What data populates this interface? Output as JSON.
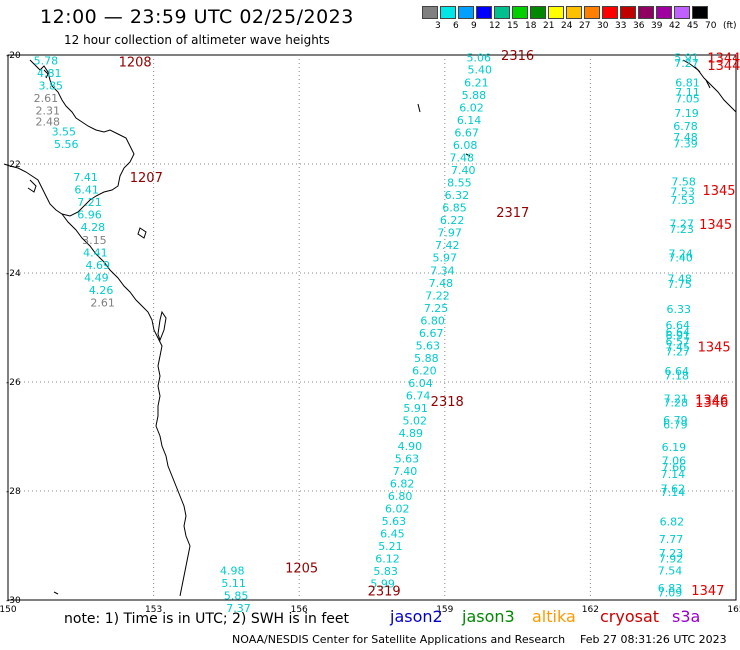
{
  "header": {
    "title": "12:00 — 23:59 UTC 02/25/2023",
    "subtitle": "12 hour collection of altimeter wave heights"
  },
  "colorbar": {
    "labels": [
      "3",
      "6",
      "9",
      "12",
      "15",
      "18",
      "21",
      "24",
      "27",
      "30",
      "33",
      "36",
      "39",
      "42",
      "45",
      "70",
      "(ft)"
    ],
    "colors": [
      "#808080",
      "#00e5e5",
      "#00a0ff",
      "#0000ff",
      "#00c090",
      "#00d000",
      "#008800",
      "#ffff00",
      "#ffc000",
      "#ff8000",
      "#ff0000",
      "#c00000",
      "#900060",
      "#a000a0",
      "#c060ff",
      "#000000"
    ]
  },
  "axes": {
    "lat_labels": [
      {
        "lat": -20,
        "text": "-20"
      },
      {
        "lat": -22,
        "text": "-22"
      },
      {
        "lat": -24,
        "text": "-24"
      },
      {
        "lat": -26,
        "text": "-26"
      },
      {
        "lat": -28,
        "text": "-28"
      },
      {
        "lat": -30,
        "text": "-30"
      }
    ],
    "lon_labels": [
      {
        "lon": 150,
        "text": "150"
      },
      {
        "lon": 153,
        "text": "153"
      },
      {
        "lon": 156,
        "text": "156"
      },
      {
        "lon": 159,
        "text": "159"
      },
      {
        "lon": 162,
        "text": "162"
      },
      {
        "lon": 165,
        "text": "165"
      }
    ]
  },
  "passes": [
    {
      "color": "#00cccc",
      "points": [
        {
          "lon": 150.78,
          "lat": -20.1,
          "v": "5.78"
        },
        {
          "lon": 150.85,
          "lat": -20.33,
          "v": "4.81"
        },
        {
          "lon": 150.88,
          "lat": -20.56,
          "v": "3.85"
        },
        {
          "lon": 150.78,
          "lat": -20.79,
          "v": "2.61",
          "c": "#808080"
        },
        {
          "lon": 150.82,
          "lat": -21.02,
          "v": "2.31",
          "c": "#808080"
        },
        {
          "lon": 150.82,
          "lat": -21.22,
          "v": "2.48",
          "c": "#808080"
        },
        {
          "lon": 151.15,
          "lat": -21.4,
          "v": "3.55"
        },
        {
          "lon": 151.2,
          "lat": -21.63,
          "v": "5.56"
        },
        {
          "lon": 151.6,
          "lat": -22.24,
          "v": "7.41"
        },
        {
          "lon": 151.62,
          "lat": -22.47,
          "v": "6.41"
        },
        {
          "lon": 151.68,
          "lat": -22.7,
          "v": "7.21"
        },
        {
          "lon": 151.68,
          "lat": -22.93,
          "v": "6.96"
        },
        {
          "lon": 151.75,
          "lat": -23.16,
          "v": "4.28"
        },
        {
          "lon": 151.78,
          "lat": -23.39,
          "v": "3.15",
          "c": "#808080"
        },
        {
          "lon": 151.8,
          "lat": -23.62,
          "v": "4.41"
        },
        {
          "lon": 151.85,
          "lat": -23.85,
          "v": "4.69"
        },
        {
          "lon": 151.82,
          "lat": -24.08,
          "v": "4.49"
        },
        {
          "lon": 151.92,
          "lat": -24.31,
          "v": "4.26"
        },
        {
          "lon": 151.95,
          "lat": -24.54,
          "v": "2.61",
          "c": "#808080"
        }
      ]
    },
    {
      "color": "#00cccc",
      "points": [
        {
          "lon": 159.7,
          "lat": -20.05,
          "v": "5.06"
        },
        {
          "lon": 159.72,
          "lat": -20.27,
          "v": "5.40"
        },
        {
          "lon": 159.65,
          "lat": -20.5,
          "v": "6.21"
        },
        {
          "lon": 159.6,
          "lat": -20.73,
          "v": "5.88"
        },
        {
          "lon": 159.55,
          "lat": -20.96,
          "v": "6.02"
        },
        {
          "lon": 159.5,
          "lat": -21.19,
          "v": "6.14"
        },
        {
          "lon": 159.45,
          "lat": -21.42,
          "v": "6.67"
        },
        {
          "lon": 159.42,
          "lat": -21.65,
          "v": "6.08"
        },
        {
          "lon": 159.35,
          "lat": -21.88,
          "v": "7.48"
        },
        {
          "lon": 159.38,
          "lat": -22.11,
          "v": "7.40"
        },
        {
          "lon": 159.3,
          "lat": -22.34,
          "v": "8.55"
        },
        {
          "lon": 159.25,
          "lat": -22.57,
          "v": "6.32"
        },
        {
          "lon": 159.2,
          "lat": -22.8,
          "v": "6.85"
        },
        {
          "lon": 159.15,
          "lat": -23.03,
          "v": "6.22"
        },
        {
          "lon": 159.1,
          "lat": -23.26,
          "v": "7.97"
        },
        {
          "lon": 159.05,
          "lat": -23.49,
          "v": "7.42"
        },
        {
          "lon": 159.0,
          "lat": -23.72,
          "v": "5.97"
        },
        {
          "lon": 158.95,
          "lat": -23.95,
          "v": "7.34"
        },
        {
          "lon": 158.92,
          "lat": -24.18,
          "v": "7.48"
        },
        {
          "lon": 158.85,
          "lat": -24.41,
          "v": "7.22"
        },
        {
          "lon": 158.82,
          "lat": -24.64,
          "v": "7.25"
        },
        {
          "lon": 158.75,
          "lat": -24.87,
          "v": "6.80"
        },
        {
          "lon": 158.72,
          "lat": -25.1,
          "v": "6.67"
        },
        {
          "lon": 158.65,
          "lat": -25.33,
          "v": "5.63"
        },
        {
          "lon": 158.62,
          "lat": -25.56,
          "v": "5.88"
        },
        {
          "lon": 158.58,
          "lat": -25.79,
          "v": "6.20"
        },
        {
          "lon": 158.5,
          "lat": -26.02,
          "v": "6.04"
        },
        {
          "lon": 158.45,
          "lat": -26.25,
          "v": "6.74"
        },
        {
          "lon": 158.4,
          "lat": -26.48,
          "v": "5.91"
        },
        {
          "lon": 158.38,
          "lat": -26.71,
          "v": "5.02"
        },
        {
          "lon": 158.3,
          "lat": -26.94,
          "v": "4.89"
        },
        {
          "lon": 158.28,
          "lat": -27.17,
          "v": "4.90"
        },
        {
          "lon": 158.22,
          "lat": -27.4,
          "v": "5.63"
        },
        {
          "lon": 158.18,
          "lat": -27.63,
          "v": "7.40"
        },
        {
          "lon": 158.12,
          "lat": -27.86,
          "v": "6.82"
        },
        {
          "lon": 158.08,
          "lat": -28.09,
          "v": "6.80"
        },
        {
          "lon": 158.02,
          "lat": -28.32,
          "v": "6.02"
        },
        {
          "lon": 157.95,
          "lat": -28.55,
          "v": "5.63"
        },
        {
          "lon": 157.92,
          "lat": -28.78,
          "v": "6.45"
        },
        {
          "lon": 157.88,
          "lat": -29.01,
          "v": "5.21"
        },
        {
          "lon": 157.82,
          "lat": -29.24,
          "v": "6.12"
        },
        {
          "lon": 157.78,
          "lat": -29.47,
          "v": "5.83"
        },
        {
          "lon": 157.72,
          "lat": -29.7,
          "v": "5.99"
        }
      ]
    },
    {
      "color": "#00cccc",
      "points": [
        {
          "lon": 163.98,
          "lat": -20.05,
          "v": "5.91"
        },
        {
          "lon": 163.98,
          "lat": -20.15,
          "v": "7.27"
        },
        {
          "lon": 164.0,
          "lat": -20.5,
          "v": "6.81"
        },
        {
          "lon": 164.0,
          "lat": -20.68,
          "v": "7.11"
        },
        {
          "lon": 164.0,
          "lat": -20.8,
          "v": "7.05"
        },
        {
          "lon": 163.98,
          "lat": -21.06,
          "v": "7.19"
        },
        {
          "lon": 163.96,
          "lat": -21.3,
          "v": "6.78"
        },
        {
          "lon": 163.96,
          "lat": -21.5,
          "v": "7.48"
        },
        {
          "lon": 163.96,
          "lat": -21.62,
          "v": "7.39"
        },
        {
          "lon": 163.92,
          "lat": -22.32,
          "v": "7.58"
        },
        {
          "lon": 163.9,
          "lat": -22.5,
          "v": "7.53"
        },
        {
          "lon": 163.9,
          "lat": -22.66,
          "v": "7.53"
        },
        {
          "lon": 163.88,
          "lat": -23.09,
          "v": "7.27"
        },
        {
          "lon": 163.88,
          "lat": -23.19,
          "v": "7.23"
        },
        {
          "lon": 163.86,
          "lat": -23.64,
          "v": "7.24"
        },
        {
          "lon": 163.86,
          "lat": -23.72,
          "v": "7.40"
        },
        {
          "lon": 163.84,
          "lat": -24.1,
          "v": "7.48"
        },
        {
          "lon": 163.84,
          "lat": -24.2,
          "v": "7.75"
        },
        {
          "lon": 163.82,
          "lat": -24.66,
          "v": "6.33"
        },
        {
          "lon": 163.8,
          "lat": -24.95,
          "v": "6.64"
        },
        {
          "lon": 163.8,
          "lat": -25.08,
          "v": "6.64"
        },
        {
          "lon": 163.8,
          "lat": -25.15,
          "v": "6.91"
        },
        {
          "lon": 163.8,
          "lat": -25.26,
          "v": "6.57"
        },
        {
          "lon": 163.8,
          "lat": -25.36,
          "v": "7.45"
        },
        {
          "lon": 163.8,
          "lat": -25.44,
          "v": "7.27"
        },
        {
          "lon": 163.78,
          "lat": -25.8,
          "v": "6.64"
        },
        {
          "lon": 163.78,
          "lat": -25.88,
          "v": "7.18"
        },
        {
          "lon": 163.76,
          "lat": -26.3,
          "v": "7.21"
        },
        {
          "lon": 163.76,
          "lat": -26.38,
          "v": "7.28"
        },
        {
          "lon": 163.75,
          "lat": -26.7,
          "v": "6.79"
        },
        {
          "lon": 163.75,
          "lat": -26.78,
          "v": "6.79"
        },
        {
          "lon": 163.72,
          "lat": -27.19,
          "v": "6.19"
        },
        {
          "lon": 163.72,
          "lat": -27.44,
          "v": "7.06"
        },
        {
          "lon": 163.72,
          "lat": -27.56,
          "v": "7.66"
        },
        {
          "lon": 163.7,
          "lat": -27.69,
          "v": "7.14"
        },
        {
          "lon": 163.7,
          "lat": -27.95,
          "v": "7.62"
        },
        {
          "lon": 163.7,
          "lat": -28.02,
          "v": "7.14"
        },
        {
          "lon": 163.68,
          "lat": -28.56,
          "v": "6.82"
        },
        {
          "lon": 163.66,
          "lat": -28.88,
          "v": "7.77"
        },
        {
          "lon": 163.66,
          "lat": -29.14,
          "v": "7.23"
        },
        {
          "lon": 163.66,
          "lat": -29.24,
          "v": "7.92"
        },
        {
          "lon": 163.64,
          "lat": -29.46,
          "v": "7.54"
        },
        {
          "lon": 163.64,
          "lat": -29.78,
          "v": "6.83"
        },
        {
          "lon": 163.64,
          "lat": -29.86,
          "v": "7.09"
        }
      ]
    },
    {
      "color": "#00cccc",
      "points": [
        {
          "lon": 154.62,
          "lat": -29.46,
          "v": "4.98"
        },
        {
          "lon": 154.65,
          "lat": -29.69,
          "v": "5.11"
        },
        {
          "lon": 154.7,
          "lat": -29.92,
          "v": "5.85"
        },
        {
          "lon": 154.75,
          "lat": -30.15,
          "v": "7.37"
        }
      ]
    }
  ],
  "time_labels": [
    {
      "lon": 152.62,
      "lat": -20.12,
      "text": "1208",
      "color": "#900000"
    },
    {
      "lon": 152.85,
      "lat": -22.24,
      "text": "1207",
      "color": "#900000"
    },
    {
      "lon": 160.5,
      "lat": -20.0,
      "text": "2316",
      "color": "#900000"
    },
    {
      "lon": 160.4,
      "lat": -22.88,
      "text": "2317",
      "color": "#900000"
    },
    {
      "lon": 159.05,
      "lat": -26.35,
      "text": "2318",
      "color": "#900000"
    },
    {
      "lon": 157.75,
      "lat": -29.83,
      "text": "2319",
      "color": "#900000"
    },
    {
      "lon": 156.05,
      "lat": -29.4,
      "text": "1205",
      "color": "#900000"
    },
    {
      "lon": 164.75,
      "lat": -20.05,
      "text": "1344",
      "color": "#e00000"
    },
    {
      "lon": 164.75,
      "lat": -20.18,
      "text": "1344",
      "color": "#e00000"
    },
    {
      "lon": 164.65,
      "lat": -22.48,
      "text": "1345",
      "color": "#e00000"
    },
    {
      "lon": 164.58,
      "lat": -23.1,
      "text": "1345",
      "color": "#e00000"
    },
    {
      "lon": 164.55,
      "lat": -25.35,
      "text": "1345",
      "color": "#e00000"
    },
    {
      "lon": 164.5,
      "lat": -26.32,
      "text": "1346",
      "color": "#e00000"
    },
    {
      "lon": 164.5,
      "lat": -26.37,
      "text": "1346",
      "color": "#e00000"
    },
    {
      "lon": 164.42,
      "lat": -29.82,
      "text": "1347",
      "color": "#e00000"
    }
  ],
  "footer": {
    "note": "note: 1) Time is in UTC; 2) SWH is in feet",
    "credit": "NOAA/NESDIS Center for Satellite Applications and Research",
    "timestamp": "Feb 27 08:31:26 UTC 2023",
    "legend": [
      {
        "text": "jason2",
        "color": "#0000cc"
      },
      {
        "text": "jason3",
        "color": "#008800"
      },
      {
        "text": "altika",
        "color": "#ff9900"
      },
      {
        "text": "cryosat",
        "color": "#cc0000"
      },
      {
        "text": "s3a",
        "color": "#9900cc"
      }
    ]
  }
}
